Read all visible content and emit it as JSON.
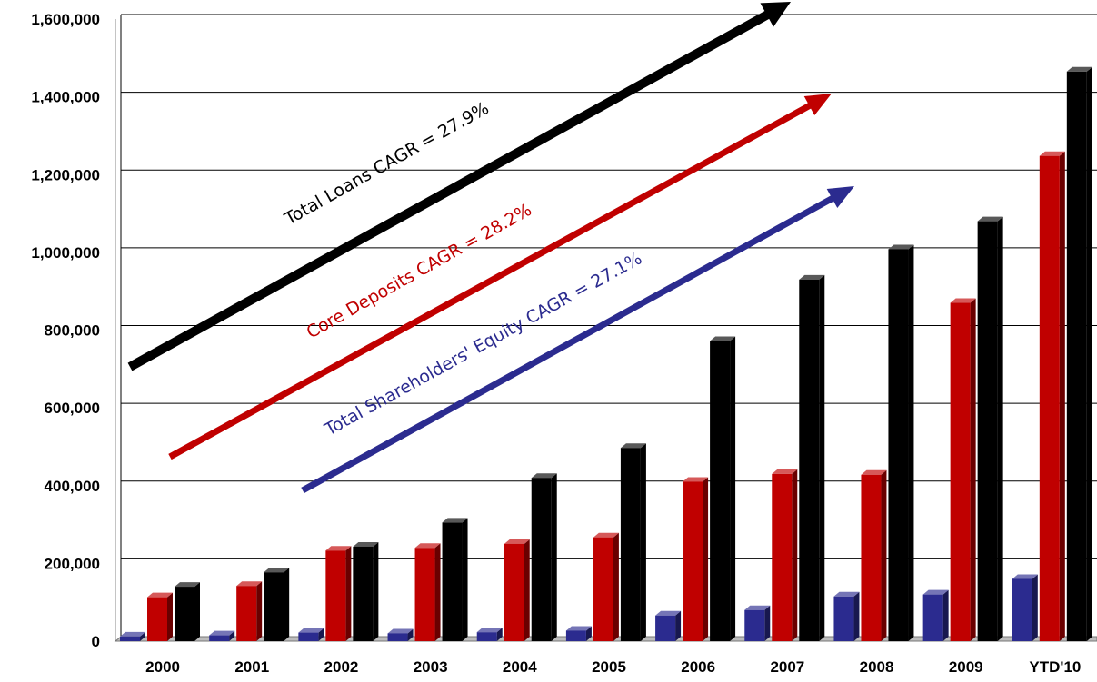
{
  "chart_data": {
    "type": "bar",
    "categories": [
      "2000",
      "2001",
      "2002",
      "2003",
      "2004",
      "2005",
      "2006",
      "2007",
      "2008",
      "2009",
      "YTD'10"
    ],
    "series": [
      {
        "values": [
          12000,
          15000,
          22000,
          20000,
          23000,
          27000,
          66000,
          80000,
          115000,
          120000,
          160000
        ],
        "color": "#2b2b8f"
      },
      {
        "values": [
          113000,
          142000,
          233000,
          240000,
          250000,
          267000,
          410000,
          430000,
          428000,
          870000,
          1248000
        ],
        "color": "#c00000"
      },
      {
        "values": [
          140000,
          177000,
          243000,
          305000,
          420000,
          497000,
          772000,
          930000,
          1008000,
          1080000,
          1465000
        ],
        "color": "#000000"
      }
    ],
    "ylim": [
      0,
      1600000
    ],
    "yticks": [
      0,
      200000,
      400000,
      600000,
      800000,
      1000000,
      1200000,
      1400000,
      1600000
    ],
    "ytick_labels": [
      "0",
      "200,000",
      "400,000",
      "600,000",
      "800,000",
      "1,000,000",
      "1,200,000",
      "1,400,000",
      "1,600,000"
    ],
    "grid": true,
    "three_d": true,
    "annotations": [
      {
        "text": "Total Loans CAGR = 27.9%",
        "color": "#000000"
      },
      {
        "text": "Core Deposits CAGR = 28.2%",
        "color": "#c00000"
      },
      {
        "text": "Total Shareholders' Equity CAGR = 27.1%",
        "color": "#2b2b8f"
      }
    ]
  }
}
